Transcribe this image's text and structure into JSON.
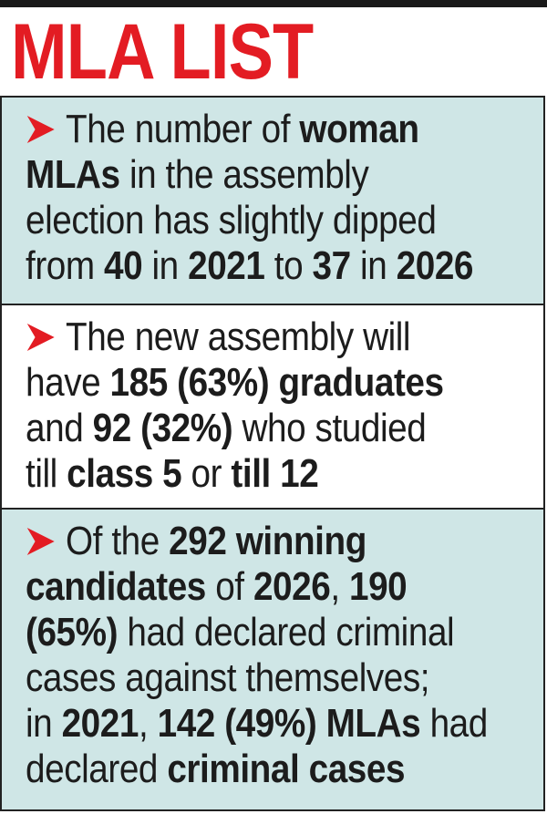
{
  "title": "MLA LIST",
  "sections": [
    {
      "lines": [
        [
          {
            "t": "The number of ",
            "b": false
          },
          {
            "t": "woman",
            "b": true
          }
        ],
        [
          {
            "t": "MLAs",
            "b": true
          },
          {
            "t": " in the assembly",
            "b": false
          }
        ],
        [
          {
            "t": "election has slightly dipped",
            "b": false
          }
        ],
        [
          {
            "t": "from ",
            "b": false
          },
          {
            "t": "40",
            "b": true
          },
          {
            "t": " in ",
            "b": false
          },
          {
            "t": "2021",
            "b": true
          },
          {
            "t": " to ",
            "b": false
          },
          {
            "t": "37",
            "b": true
          },
          {
            "t": " in ",
            "b": false
          },
          {
            "t": "2026",
            "b": true
          }
        ]
      ]
    },
    {
      "lines": [
        [
          {
            "t": "The new assembly will",
            "b": false
          }
        ],
        [
          {
            "t": "have ",
            "b": false
          },
          {
            "t": "185 (63%) graduates",
            "b": true
          }
        ],
        [
          {
            "t": "and ",
            "b": false
          },
          {
            "t": "92 (32%)",
            "b": true
          },
          {
            "t": " who studied",
            "b": false
          }
        ],
        [
          {
            "t": "till ",
            "b": false
          },
          {
            "t": "class 5",
            "b": true
          },
          {
            "t": " or ",
            "b": false
          },
          {
            "t": "till 12",
            "b": true
          }
        ]
      ]
    },
    {
      "lines": [
        [
          {
            "t": "Of the ",
            "b": false
          },
          {
            "t": "292 winning",
            "b": true
          }
        ],
        [
          {
            "t": "candidates",
            "b": true
          },
          {
            "t": " of ",
            "b": false
          },
          {
            "t": "2026",
            "b": true
          },
          {
            "t": ", ",
            "b": false
          },
          {
            "t": "190",
            "b": true
          }
        ],
        [
          {
            "t": "(65%)",
            "b": true
          },
          {
            "t": " had declared criminal",
            "b": false
          }
        ],
        [
          {
            "t": "cases against themselves;",
            "b": false
          }
        ],
        [
          {
            "t": "in ",
            "b": false
          },
          {
            "t": "2021",
            "b": true
          },
          {
            "t": ", ",
            "b": false
          },
          {
            "t": "142 (49%) MLAs",
            "b": true
          },
          {
            "t": " had",
            "b": false
          }
        ],
        [
          {
            "t": "declared ",
            "b": false
          },
          {
            "t": "criminal cases",
            "b": true
          }
        ]
      ]
    }
  ],
  "colors": {
    "title": "#e31c23",
    "arrow": "#e31c23",
    "shaded_background": "#cfe6e6",
    "text": "#1c1c1c"
  },
  "icons": {
    "bullet": "chevron-arrow-icon"
  }
}
